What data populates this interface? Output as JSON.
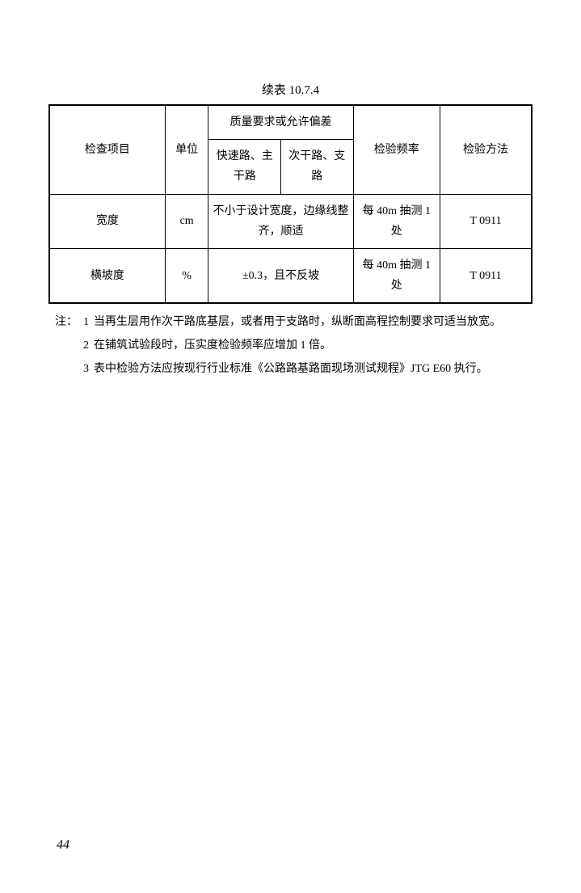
{
  "title": "续表 10.7.4",
  "table": {
    "header": {
      "item": "检查项目",
      "unit": "单位",
      "quality_group": "质量要求或允许偏差",
      "quality_col1": "快速路、主干路",
      "quality_col2": "次干路、支路",
      "freq": "检验频率",
      "method": "检验方法"
    },
    "rows": [
      {
        "item": "宽度",
        "unit": "cm",
        "quality_merged": "不小于设计宽度，边缘线整齐，顺适",
        "freq": "每 40m 抽测 1 处",
        "method": "T 0911"
      },
      {
        "item": "横坡度",
        "unit": "%",
        "quality_merged": "±0.3，且不反坡",
        "freq": "每 40m 抽测 1 处",
        "method": "T 0911"
      }
    ]
  },
  "notes": {
    "prefix": "注：",
    "items": [
      {
        "num": "1",
        "text": "当再生层用作次干路底基层，或者用于支路时，纵断面高程控制要求可适当放宽。"
      },
      {
        "num": "2",
        "text": "在铺筑试验段时，压实度检验频率应增加 1 倍。"
      },
      {
        "num": "3",
        "text": "表中检验方法应按现行行业标准《公路路基路面现场测试规程》JTG E60 执行。"
      }
    ]
  },
  "page_number": "44"
}
